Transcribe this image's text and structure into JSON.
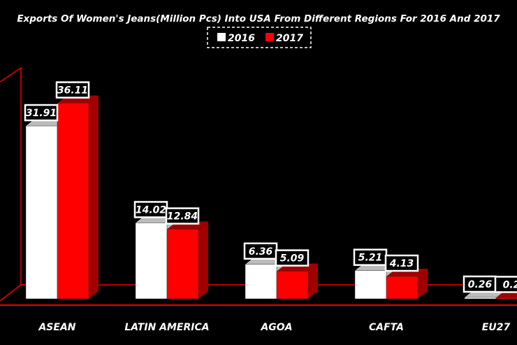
{
  "chart_data": {
    "type": "bar",
    "title": "Exports Of Women's Jeans(Million Pcs) Into USA From Different Regions For 2016 And 2017",
    "categories": [
      "ASEAN",
      "LATIN AMERICA",
      "AGOA",
      "CAFTA",
      "EU27"
    ],
    "series": [
      {
        "name": "2016",
        "color": "#ffffff",
        "values": [
          31.91,
          14.02,
          6.36,
          5.21,
          0.26
        ],
        "labels": [
          "31.91",
          "14.02",
          "6.36",
          "5.21",
          "0.26"
        ]
      },
      {
        "name": "2017",
        "color": "#ff0000",
        "values": [
          36.11,
          12.84,
          5.09,
          4.13,
          0.2
        ],
        "labels": [
          "36.11",
          "12.84",
          "5.09",
          "4.13",
          "0.2"
        ]
      }
    ],
    "legend": "top-center",
    "grid": false,
    "xlabel": "",
    "ylabel": "",
    "ylim": [
      0,
      42
    ]
  }
}
